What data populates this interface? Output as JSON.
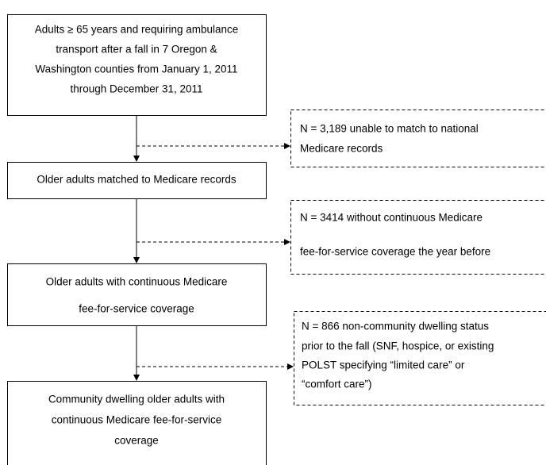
{
  "nodes": [
    {
      "lines": [
        "Adults ≥ 65 years and requiring ambulance",
        "transport after a fall in 7 Oregon &",
        "Washington counties from January 1, 2011",
        "through December 31, 2011"
      ]
    },
    {
      "lines": [
        "Older adults matched to Medicare records"
      ]
    },
    {
      "lines": [
        "Older adults with continuous Medicare",
        "fee-for-service coverage"
      ]
    },
    {
      "lines": [
        "Community dwelling older adults with",
        "continuous Medicare fee-for-service",
        "coverage"
      ]
    }
  ],
  "exclusions": [
    {
      "lines": [
        "N = 3,189 unable to match to national",
        "Medicare records"
      ]
    },
    {
      "lines": [
        "N = 3414 without continuous Medicare",
        "fee-for-service coverage the year before"
      ]
    },
    {
      "lines": [
        "N = 866 non-community dwelling status",
        "prior to the fall (SNF, hospice, or existing",
        "POLST specifying “limited care” or",
        "“comfort care”)"
      ]
    }
  ]
}
